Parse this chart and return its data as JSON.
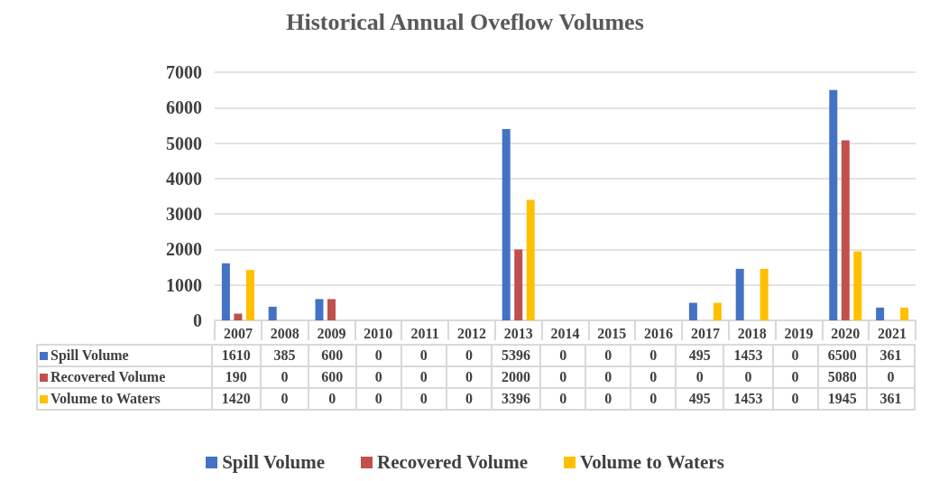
{
  "chart_data": {
    "type": "bar",
    "title": "Historical Annual Oveflow Volumes",
    "categories": [
      "2007",
      "2008",
      "2009",
      "2010",
      "2011",
      "2012",
      "2013",
      "2014",
      "2015",
      "2016",
      "2017",
      "2018",
      "2019",
      "2020",
      "2021"
    ],
    "series": [
      {
        "name": "Spill Volume",
        "color": "#4472c4",
        "values": [
          1610,
          385,
          600,
          0,
          0,
          0,
          5396,
          0,
          0,
          0,
          495,
          1453,
          0,
          6500,
          361
        ]
      },
      {
        "name": "Recovered Volume",
        "color": "#c0504d",
        "values": [
          190,
          0,
          600,
          0,
          0,
          0,
          2000,
          0,
          0,
          0,
          0,
          0,
          0,
          5080,
          0
        ]
      },
      {
        "name": "Volume to Waters",
        "color": "#ffc000",
        "values": [
          1420,
          0,
          0,
          0,
          0,
          0,
          3396,
          0,
          0,
          0,
          495,
          1453,
          0,
          1945,
          361
        ]
      }
    ],
    "ylim": [
      0,
      7000
    ],
    "yticks": [
      0,
      1000,
      2000,
      3000,
      4000,
      5000,
      6000,
      7000
    ],
    "grid": "y",
    "legend": "bottom",
    "data_labels": true
  }
}
